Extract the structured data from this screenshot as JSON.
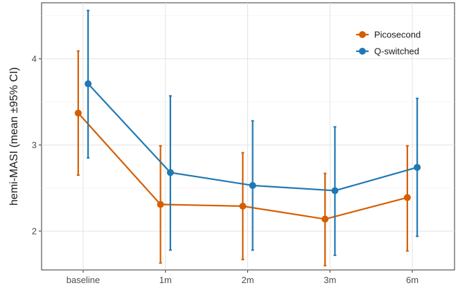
{
  "chart_data": {
    "type": "line",
    "title": "",
    "xlabel": "",
    "ylabel": "hemi-MASI (mean ±95% CI)",
    "categories": [
      "baseline",
      "1m",
      "2m",
      "3m",
      "6m"
    ],
    "ylim": [
      1.55,
      4.65
    ],
    "yticks": [
      2,
      3,
      4
    ],
    "grid": true,
    "legend_position": "top-right",
    "series": [
      {
        "name": "Picosecond",
        "color": "#D55E00",
        "values": [
          3.37,
          2.31,
          2.29,
          2.14,
          2.39
        ],
        "lower": [
          2.65,
          1.63,
          1.67,
          1.6,
          1.77
        ],
        "upper": [
          4.09,
          2.99,
          2.91,
          2.67,
          2.99
        ]
      },
      {
        "name": "Q-switched",
        "color": "#1F78B4",
        "values": [
          3.71,
          2.68,
          2.53,
          2.47,
          2.74
        ],
        "lower": [
          2.85,
          1.78,
          1.78,
          1.72,
          1.94
        ],
        "upper": [
          4.56,
          3.57,
          3.28,
          3.21,
          3.54
        ]
      }
    ]
  }
}
